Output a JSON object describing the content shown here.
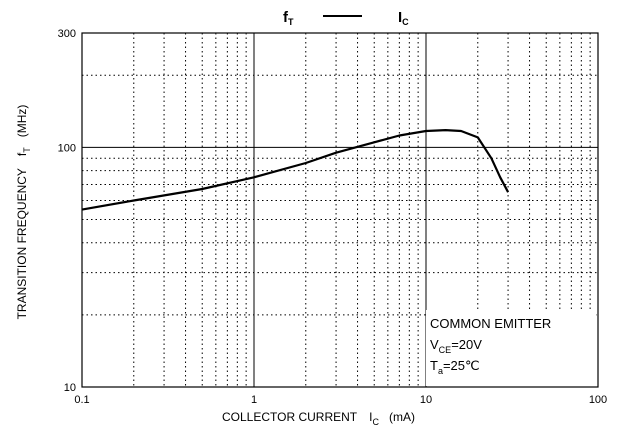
{
  "chart_data": {
    "type": "line",
    "title": {
      "left": "f",
      "left_sub": "T",
      "right": "I",
      "right_sub": "C"
    },
    "xlabel": {
      "text": "COLLECTOR CURRENT",
      "symbol": "I",
      "symbol_sub": "C",
      "unit": "(mA)"
    },
    "ylabel": {
      "text": "TRANSITION FREQUENCY",
      "symbol": "f",
      "symbol_sub": "T",
      "unit": "(MHz)"
    },
    "x_scale": "log",
    "y_scale": "log",
    "xlim": [
      0.1,
      100
    ],
    "ylim": [
      10,
      300
    ],
    "x_ticks": [
      0.1,
      1,
      10,
      100
    ],
    "x_tick_labels": [
      "0.1",
      "1",
      "10",
      "100"
    ],
    "y_ticks": [
      10,
      100,
      300
    ],
    "y_tick_labels": [
      "10",
      "100",
      "300"
    ],
    "grid": "on (dotted minor, solid major)",
    "series": [
      {
        "color": "#000000",
        "x": [
          0.1,
          0.2,
          0.5,
          1,
          2,
          3,
          5,
          7,
          10,
          13,
          16,
          20,
          24,
          27,
          30
        ],
        "y": [
          55,
          60,
          67,
          75,
          86,
          95,
          105,
          112,
          117,
          118,
          117,
          110,
          90,
          75,
          65
        ]
      }
    ],
    "annotation": {
      "line1": "COMMON EMITTER",
      "line2_main": "V",
      "line2_sub": "CE",
      "line2_value": "=20V",
      "line3_main": "T",
      "line3_sub": "a",
      "line3_value": "=25℃"
    }
  }
}
